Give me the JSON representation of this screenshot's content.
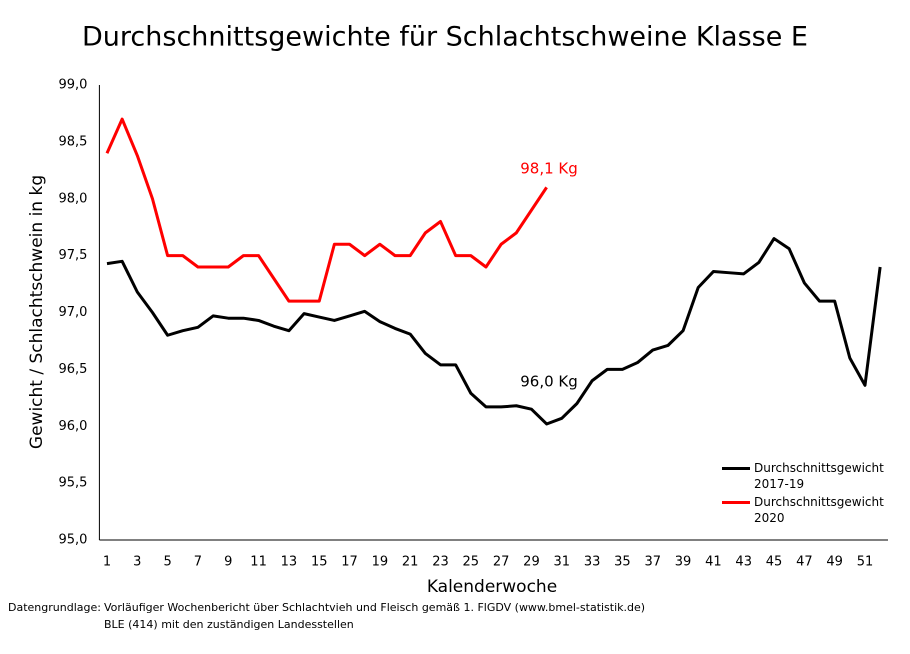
{
  "chart_data": {
    "type": "line",
    "title": "Durchschnittsgewichte für Schlachtschweine Klasse E",
    "x_label": "Kalenderwoche",
    "y_label": "Gewicht / Schlachtschwein in kg",
    "categories": [
      "1",
      null,
      "3",
      null,
      "5",
      null,
      "7",
      null,
      "9",
      null,
      "11",
      null,
      "13",
      null,
      "15",
      null,
      "17",
      null,
      "19",
      null,
      "21",
      null,
      "23",
      null,
      "25",
      null,
      "27",
      null,
      "29",
      null,
      "31",
      null,
      "33",
      null,
      "35",
      null,
      "37",
      null,
      "39",
      null,
      "41",
      null,
      "43",
      null,
      "45",
      null,
      "47",
      null,
      "49",
      null,
      "51",
      null
    ],
    "series": [
      {
        "name": "Durchschnittsgewicht 2017-19",
        "color": "#000000",
        "values": [
          97.43,
          97.45,
          97.18,
          97.0,
          96.8,
          96.84,
          96.87,
          96.97,
          96.95,
          96.95,
          96.93,
          96.88,
          96.84,
          96.99,
          96.96,
          96.93,
          96.97,
          97.01,
          96.92,
          96.86,
          96.81,
          96.64,
          96.54,
          96.54,
          96.29,
          96.17,
          96.17,
          96.18,
          96.15,
          96.02,
          96.07,
          96.2,
          96.4,
          96.5,
          96.5,
          96.56,
          96.67,
          96.71,
          96.84,
          97.22,
          97.36,
          97.35,
          97.34,
          97.44,
          97.65,
          97.56,
          97.26,
          97.1,
          97.1,
          96.6,
          96.36,
          97.4
        ]
      },
      {
        "name": "Durchschnittsgewicht 2020",
        "color": "#ff0000",
        "values": [
          98.4,
          98.7,
          98.38,
          98.0,
          97.5,
          97.5,
          97.4,
          97.4,
          97.4,
          97.5,
          97.5,
          97.3,
          97.1,
          97.1,
          97.1,
          97.6,
          97.6,
          97.5,
          97.6,
          97.5,
          97.5,
          97.7,
          97.8,
          97.5,
          97.5,
          97.4,
          97.6,
          97.7,
          97.9,
          98.1,
          null,
          null,
          null,
          null,
          null,
          null,
          null,
          null,
          null,
          null,
          null,
          null,
          null,
          null,
          null,
          null,
          null,
          null,
          null,
          null,
          null,
          null
        ]
      }
    ],
    "ylim": [
      95,
      99
    ],
    "yticks": [
      {
        "value": 95,
        "label": "95,0"
      },
      {
        "value": 95.5,
        "label": "95,5"
      },
      {
        "value": 96,
        "label": "96,0"
      },
      {
        "value": 96.5,
        "label": "96,5"
      },
      {
        "value": 97,
        "label": "97,0"
      },
      {
        "value": 97.5,
        "label": "97,5"
      },
      {
        "value": 98,
        "label": "98,0"
      },
      {
        "value": 98.5,
        "label": "98,5"
      },
      {
        "value": 99,
        "label": "99,0"
      }
    ],
    "grid": false,
    "legend": "lower right",
    "annotations": [
      "98,1 Kg",
      "96,0 Kg"
    ],
    "source": [
      "Datengrundlage:",
      "Vorläufiger Wochenbericht über Schlachtvieh und Fleisch gemäß 1. FlGDV (www.bmel-statistik.de)",
      "BLE (414) mit den zuständigen Landesstellen"
    ]
  }
}
